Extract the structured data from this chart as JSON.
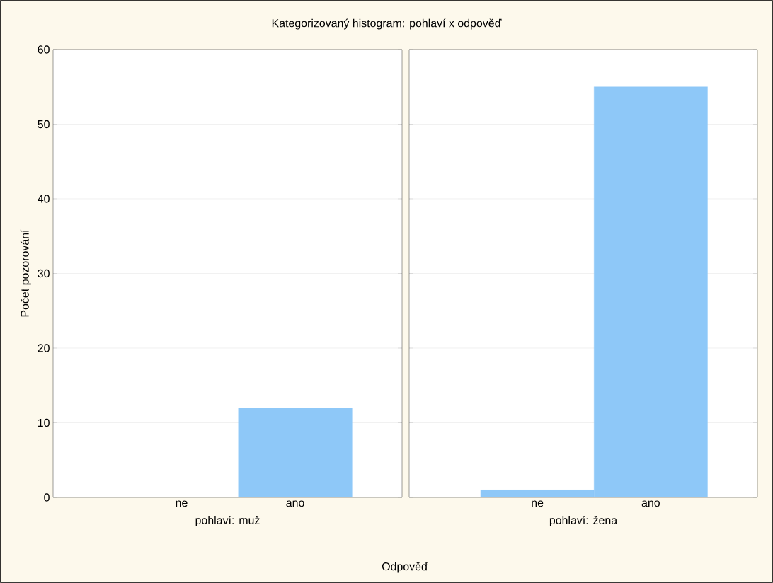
{
  "chart_data": [
    {
      "type": "bar",
      "title": "Kategorizovaný histogram: pohlaví x odpověď",
      "xlabel": "pohlaví: muž",
      "ylabel": "Počet pozorování",
      "annotations": [
        "Odpověď"
      ],
      "categories": [
        "ne",
        "ano"
      ],
      "values": [
        0,
        12
      ],
      "color": "#8ec8f8",
      "ylim": [
        0,
        60
      ],
      "yticks": [
        0,
        10,
        20,
        30,
        40,
        50,
        60
      ],
      "grid": "y"
    },
    {
      "type": "bar",
      "xlabel": "pohlaví: žena",
      "categories": [
        "ne",
        "ano"
      ],
      "values": [
        1,
        55
      ],
      "color": "#8ec8f8",
      "ylim": [
        0,
        60
      ],
      "yticks": [
        0,
        10,
        20,
        30,
        40,
        50,
        60
      ],
      "grid": "y",
      "tick_labels": "x"
    }
  ]
}
